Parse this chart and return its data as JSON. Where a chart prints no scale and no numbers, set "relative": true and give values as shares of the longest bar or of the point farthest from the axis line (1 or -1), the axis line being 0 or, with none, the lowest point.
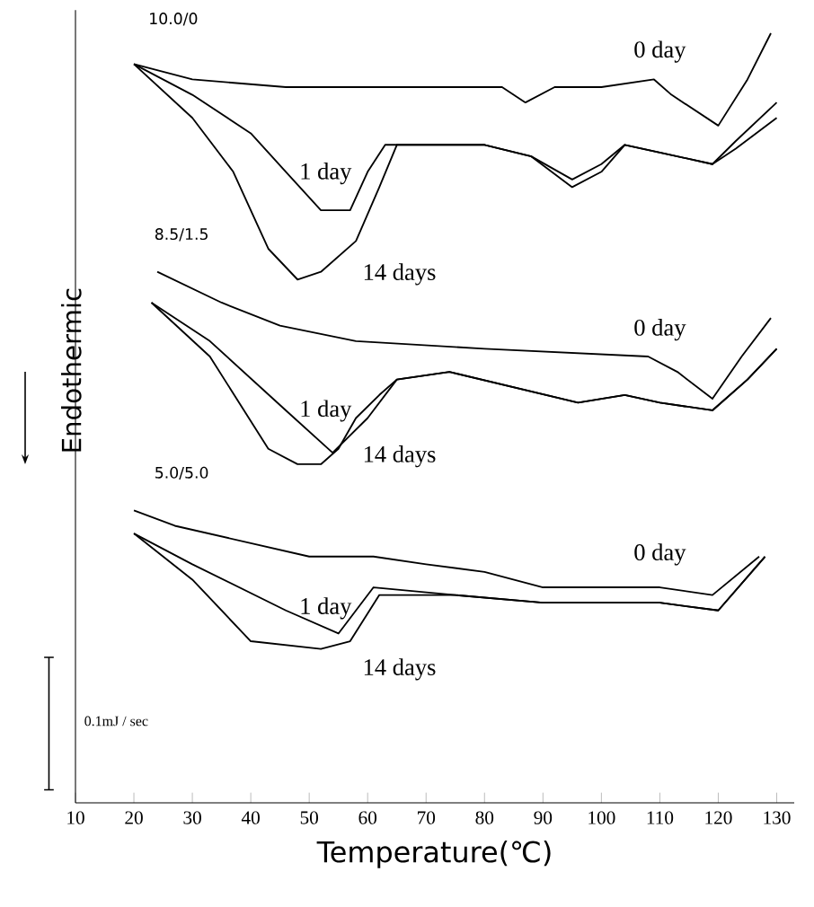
{
  "chart_data": {
    "type": "line",
    "relative": true,
    "xlabel": "Temperature(℃)",
    "ylabel": "Endothermic",
    "xlim": [
      10,
      133
    ],
    "xticks": [
      10,
      20,
      30,
      40,
      50,
      60,
      70,
      80,
      90,
      100,
      110,
      120,
      130
    ],
    "grid": false,
    "marker": "none",
    "line_style": "solid",
    "annotations": [
      "10.0/0",
      "8.5/1.5",
      "5.0/5.0",
      "0.1mJ / sec"
    ],
    "series": [
      {
        "name": "0 day",
        "color": "#000000",
        "x": [
          20,
          30,
          46,
          83,
          87,
          92,
          100,
          109,
          112,
          120,
          125,
          129
        ],
        "values": [
          0.96,
          0.94,
          0.93,
          0.93,
          0.91,
          0.93,
          0.93,
          0.94,
          0.92,
          0.88,
          0.94,
          1.0
        ]
      },
      {
        "name": "1 day",
        "color": "#000000",
        "x": [
          20,
          30,
          40,
          46,
          52,
          57,
          60,
          63,
          80,
          88,
          95,
          100,
          104,
          110,
          119,
          123,
          130
        ],
        "values": [
          0.96,
          0.92,
          0.87,
          0.82,
          0.77,
          0.77,
          0.82,
          0.855,
          0.855,
          0.84,
          0.81,
          0.83,
          0.855,
          0.845,
          0.83,
          0.86,
          0.91
        ]
      },
      {
        "name": "14 days",
        "color": "#000000",
        "x": [
          20,
          30,
          37,
          43,
          48,
          52,
          58,
          62,
          65,
          80,
          88,
          95,
          100,
          104,
          110,
          119,
          123,
          130
        ],
        "values": [
          0.96,
          0.89,
          0.82,
          0.72,
          0.68,
          0.69,
          0.73,
          0.8,
          0.855,
          0.855,
          0.84,
          0.8,
          0.82,
          0.855,
          0.845,
          0.83,
          0.85,
          0.89
        ]
      },
      {
        "name": "0 day",
        "color": "#000000",
        "x": [
          24,
          35,
          45,
          58,
          80,
          108,
          113,
          119,
          124,
          129
        ],
        "values": [
          0.69,
          0.65,
          0.62,
          0.6,
          0.59,
          0.58,
          0.56,
          0.525,
          0.58,
          0.63
        ]
      },
      {
        "name": "1 day",
        "color": "#000000",
        "x": [
          23,
          33,
          46,
          54,
          60,
          65,
          74,
          85,
          96,
          104,
          110,
          119,
          125,
          130
        ],
        "values": [
          0.65,
          0.6,
          0.51,
          0.455,
          0.5,
          0.55,
          0.56,
          0.54,
          0.52,
          0.53,
          0.52,
          0.51,
          0.55,
          0.59
        ]
      },
      {
        "name": "14 days",
        "color": "#000000",
        "x": [
          23,
          33,
          43,
          48,
          52,
          55,
          58,
          62,
          65,
          74,
          85,
          96,
          104,
          110,
          119,
          125,
          130
        ],
        "values": [
          0.65,
          0.58,
          0.46,
          0.44,
          0.44,
          0.46,
          0.5,
          0.53,
          0.55,
          0.56,
          0.54,
          0.52,
          0.53,
          0.52,
          0.51,
          0.55,
          0.59
        ]
      },
      {
        "name": "0 day",
        "color": "#000000",
        "x": [
          20,
          27,
          50,
          58,
          61,
          70,
          80,
          90,
          110,
          119,
          127
        ],
        "values": [
          0.38,
          0.36,
          0.32,
          0.32,
          0.32,
          0.31,
          0.3,
          0.28,
          0.28,
          0.27,
          0.32
        ]
      },
      {
        "name": "1 day",
        "color": "#000000",
        "x": [
          20,
          30,
          46,
          55,
          61,
          75,
          90,
          110,
          120,
          128
        ],
        "values": [
          0.35,
          0.31,
          0.25,
          0.22,
          0.28,
          0.27,
          0.26,
          0.26,
          0.25,
          0.32
        ]
      },
      {
        "name": "14 days",
        "color": "#000000",
        "x": [
          20,
          30,
          40,
          52,
          57,
          62,
          75,
          90,
          110,
          120,
          128
        ],
        "values": [
          0.35,
          0.29,
          0.21,
          0.2,
          0.21,
          0.27,
          0.27,
          0.26,
          0.26,
          0.25,
          0.32
        ]
      }
    ]
  }
}
